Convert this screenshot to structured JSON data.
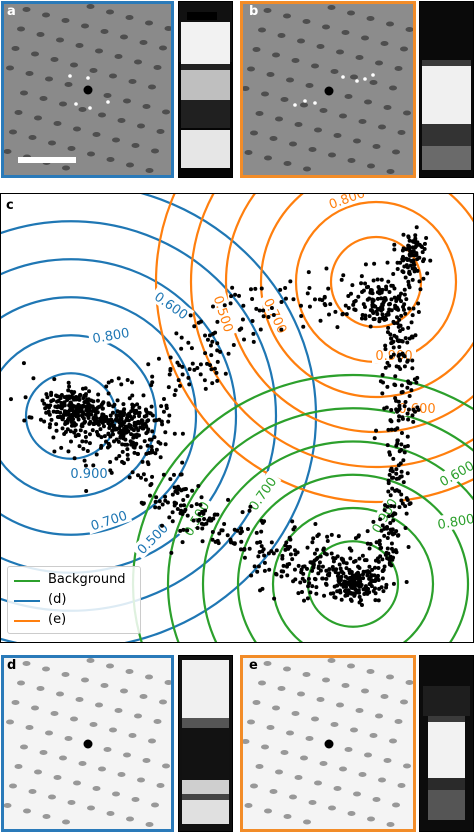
{
  "panels": {
    "a": {
      "label": "a",
      "border_color": "#2a7ab9"
    },
    "b": {
      "label": "b",
      "border_color": "#f28c28"
    },
    "c": {
      "label": "c"
    },
    "d": {
      "label": "d",
      "border_color": "#2a7ab9"
    },
    "e": {
      "label": "e",
      "border_color": "#f28c28"
    }
  },
  "legend": {
    "items": [
      {
        "label": "Background",
        "color": "#2ca02c"
      },
      {
        "label": "(d)",
        "color": "#1f77b4"
      },
      {
        "label": "(e)",
        "color": "#ff7f0e"
      }
    ],
    "placement": "bottom-left"
  },
  "contours": {
    "blue": [
      "0.600",
      "0.800",
      "0.900",
      "0.700",
      "0.500"
    ],
    "orange": [
      "0.800",
      "0.500",
      "0.700",
      "0.900",
      "0.600"
    ],
    "green": [
      "0.600",
      "0.700",
      "0.900",
      "0.800",
      "0.500"
    ]
  },
  "colors": {
    "blue": "#1f77b4",
    "orange": "#ff7f0e",
    "green": "#2ca02c"
  }
}
